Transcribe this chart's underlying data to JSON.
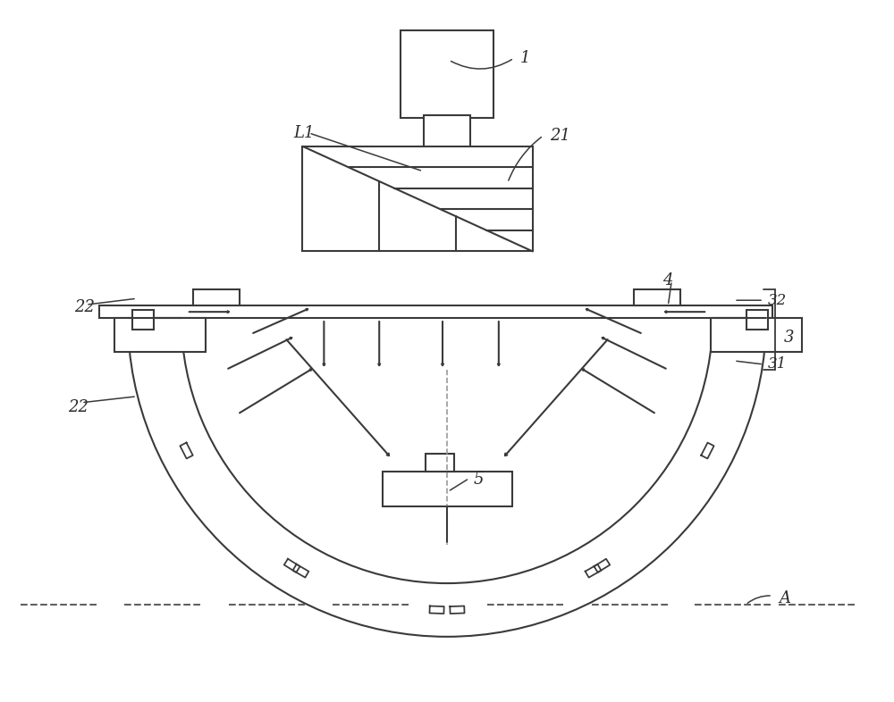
{
  "bg": "#ffffff",
  "lc": "#3a3a3a",
  "lw": 1.5,
  "fig_w": 10.0,
  "fig_h": 7.86
}
